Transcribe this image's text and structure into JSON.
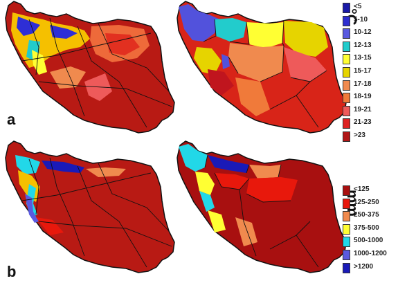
{
  "panels": {
    "a_label": "a",
    "b_label": "b"
  },
  "temperature_legend": {
    "unit": "°C",
    "classes": [
      {
        "label": "<5",
        "color": "#1a1aa8"
      },
      {
        "label": "5-10",
        "color": "#2f2fd0"
      },
      {
        "label": "10-12",
        "color": "#5a5ae0"
      },
      {
        "label": "12-13",
        "color": "#22cccc"
      },
      {
        "label": "13-15",
        "color": "#ffff33"
      },
      {
        "label": "15-17",
        "color": "#e6d400"
      },
      {
        "label": "17-18",
        "color": "#f08a4e"
      },
      {
        "label": "18-19",
        "color": "#f07a3a"
      },
      {
        "label": "19-21",
        "color": "#ee5a5a"
      },
      {
        "label": "21-23",
        "color": "#dd2222"
      },
      {
        "label": ">23",
        "color": "#b01616"
      }
    ]
  },
  "precipitation_legend": {
    "unit": "mm",
    "classes": [
      {
        "label": "<125",
        "color": "#a81010"
      },
      {
        "label": "125-250",
        "color": "#e8180c"
      },
      {
        "label": "250-375",
        "color": "#f08a4e"
      },
      {
        "label": "375-500",
        "color": "#ffff33"
      },
      {
        "label": "500-1000",
        "color": "#22d8e8"
      },
      {
        "label": "1000-1200",
        "color": "#5a5ae0"
      },
      {
        "label": ">1200",
        "color": "#1a1ab8"
      }
    ]
  }
}
